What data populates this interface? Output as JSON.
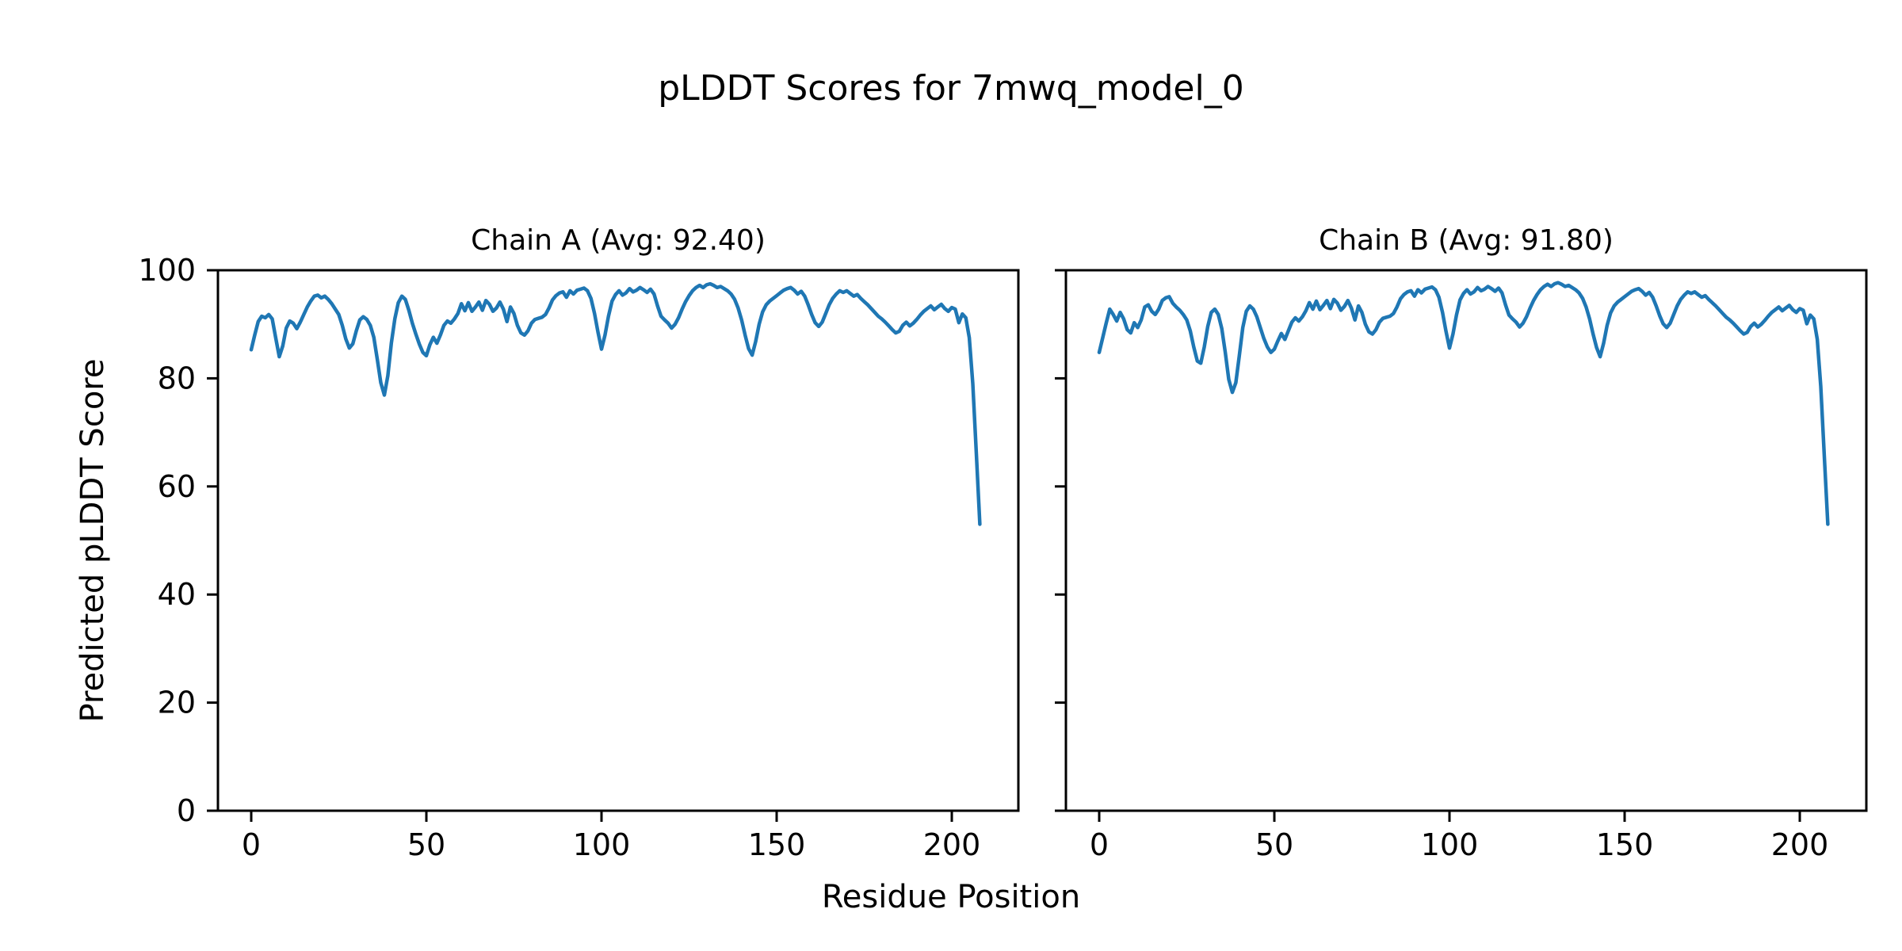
{
  "suptitle": "pLDDT Scores for 7mwq_model_0",
  "xlabel": "Residue Position",
  "ylabel": "Predicted pLDDT Score",
  "line_color": "#1f77b4",
  "axis_color": "#000000",
  "chart_data": [
    {
      "type": "line",
      "chain": "a",
      "title": "Chain A (Avg: 92.40)",
      "avg": 92.4,
      "x_start": 0,
      "xticks": [
        0,
        50,
        100,
        150,
        200
      ],
      "yticks": [
        0,
        20,
        40,
        60,
        80,
        100
      ],
      "y_tick_labels_visible": true,
      "xlim": [
        -9.5,
        219
      ],
      "ylim": [
        0,
        100
      ],
      "grid": false,
      "values": [
        85.3,
        88.0,
        90.5,
        91.5,
        91.2,
        91.8,
        91.0,
        87.5,
        84.0,
        86.0,
        89.3,
        90.6,
        90.2,
        89.2,
        90.4,
        91.8,
        93.2,
        94.3,
        95.2,
        95.4,
        94.9,
        95.2,
        94.6,
        93.8,
        92.8,
        91.8,
        89.8,
        87.3,
        85.6,
        86.4,
        88.8,
        90.8,
        91.4,
        90.9,
        89.8,
        87.6,
        83.5,
        79.2,
        76.9,
        80.5,
        86.5,
        91.0,
        94.0,
        95.2,
        94.6,
        92.6,
        90.2,
        88.2,
        86.3,
        84.8,
        84.2,
        86.2,
        87.6,
        86.5,
        88.0,
        89.8,
        90.6,
        90.2,
        91.0,
        92.0,
        93.8,
        92.5,
        94.0,
        92.4,
        93.2,
        94.1,
        92.6,
        94.4,
        93.7,
        92.4,
        93.0,
        94.1,
        92.8,
        90.5,
        93.2,
        92.0,
        89.8,
        88.4,
        88.0,
        88.8,
        90.2,
        90.9,
        91.1,
        91.3,
        91.8,
        93.0,
        94.5,
        95.3,
        95.8,
        96.0,
        95.0,
        96.2,
        95.6,
        96.3,
        96.5,
        96.7,
        96.2,
        94.8,
        92.0,
        88.5,
        85.4,
        88.0,
        91.5,
        94.3,
        95.5,
        96.2,
        95.4,
        95.8,
        96.6,
        96.0,
        96.3,
        96.8,
        96.4,
        95.9,
        96.5,
        95.6,
        93.4,
        91.5,
        90.8,
        90.2,
        89.3,
        90.0,
        91.2,
        92.8,
        94.2,
        95.3,
        96.2,
        96.8,
        97.2,
        96.8,
        97.3,
        97.5,
        97.2,
        96.8,
        97.0,
        96.6,
        96.2,
        95.6,
        94.6,
        93.0,
        90.8,
        88.0,
        85.5,
        84.3,
        86.8,
        90.0,
        92.3,
        93.6,
        94.3,
        94.8,
        95.3,
        95.8,
        96.3,
        96.6,
        96.8,
        96.3,
        95.6,
        96.1,
        95.2,
        93.6,
        91.8,
        90.3,
        89.6,
        90.4,
        92.0,
        93.6,
        94.8,
        95.6,
        96.2,
        95.9,
        96.2,
        95.7,
        95.2,
        95.5,
        94.8,
        94.2,
        93.6,
        92.9,
        92.2,
        91.5,
        91.0,
        90.4,
        89.7,
        89.0,
        88.4,
        88.7,
        89.8,
        90.4,
        89.7,
        90.2,
        90.9,
        91.7,
        92.4,
        92.9,
        93.4,
        92.7,
        93.2,
        93.7,
        92.9,
        92.4,
        93.1,
        92.8,
        90.3,
        91.9,
        91.2,
        87.5,
        79.0,
        66.0,
        53.0
      ]
    },
    {
      "type": "line",
      "chain": "b",
      "title": "Chain B (Avg: 91.80)",
      "avg": 91.8,
      "x_start": 0,
      "xticks": [
        0,
        50,
        100,
        150,
        200
      ],
      "yticks": [
        0,
        20,
        40,
        60,
        80,
        100
      ],
      "y_tick_labels_visible": false,
      "xlim": [
        -9.5,
        219
      ],
      "ylim": [
        0,
        100
      ],
      "grid": false,
      "values": [
        84.8,
        87.5,
        90.2,
        92.8,
        91.8,
        90.6,
        92.2,
        91.0,
        89.0,
        88.4,
        90.3,
        89.4,
        90.8,
        93.2,
        93.6,
        92.4,
        91.8,
        92.8,
        94.4,
        94.9,
        95.1,
        93.9,
        93.2,
        92.6,
        91.8,
        90.8,
        88.8,
        85.8,
        83.2,
        82.8,
        85.8,
        89.6,
        92.2,
        92.8,
        91.8,
        89.2,
        84.8,
        79.8,
        77.4,
        79.2,
        84.2,
        89.4,
        92.4,
        93.4,
        92.8,
        91.4,
        89.4,
        87.4,
        85.8,
        84.8,
        85.4,
        86.9,
        88.3,
        87.2,
        88.8,
        90.4,
        91.2,
        90.6,
        91.4,
        92.5,
        94.0,
        92.8,
        94.3,
        92.7,
        93.5,
        94.4,
        92.9,
        94.6,
        93.9,
        92.6,
        93.3,
        94.4,
        93.0,
        90.8,
        93.4,
        92.2,
        90.0,
        88.6,
        88.2,
        89.0,
        90.4,
        91.1,
        91.3,
        91.5,
        92.0,
        93.2,
        94.7,
        95.5,
        96.0,
        96.2,
        95.2,
        96.4,
        95.8,
        96.5,
        96.7,
        96.9,
        96.4,
        95.0,
        92.2,
        88.7,
        85.6,
        88.2,
        91.7,
        94.5,
        95.7,
        96.4,
        95.6,
        96.0,
        96.8,
        96.2,
        96.5,
        97.0,
        96.6,
        96.1,
        96.7,
        95.8,
        93.6,
        91.7,
        91.0,
        90.4,
        89.5,
        90.2,
        91.4,
        93.0,
        94.4,
        95.5,
        96.4,
        97.0,
        97.4,
        97.0,
        97.5,
        97.7,
        97.4,
        97.0,
        97.2,
        96.8,
        96.4,
        95.8,
        94.8,
        93.2,
        91.0,
        88.2,
        85.7,
        84.0,
        86.5,
        89.8,
        92.1,
        93.4,
        94.1,
        94.6,
        95.1,
        95.6,
        96.1,
        96.4,
        96.6,
        96.1,
        95.4,
        95.9,
        95.0,
        93.4,
        91.6,
        90.1,
        89.4,
        90.2,
        91.8,
        93.4,
        94.6,
        95.4,
        96.0,
        95.7,
        96.0,
        95.5,
        95.0,
        95.3,
        94.6,
        94.0,
        93.4,
        92.7,
        92.0,
        91.3,
        90.8,
        90.2,
        89.5,
        88.8,
        88.2,
        88.5,
        89.6,
        90.2,
        89.5,
        90.0,
        90.7,
        91.5,
        92.2,
        92.7,
        93.2,
        92.5,
        93.0,
        93.5,
        92.7,
        92.2,
        92.9,
        92.6,
        90.1,
        91.7,
        91.0,
        87.2,
        78.5,
        65.5,
        53.0
      ]
    }
  ]
}
